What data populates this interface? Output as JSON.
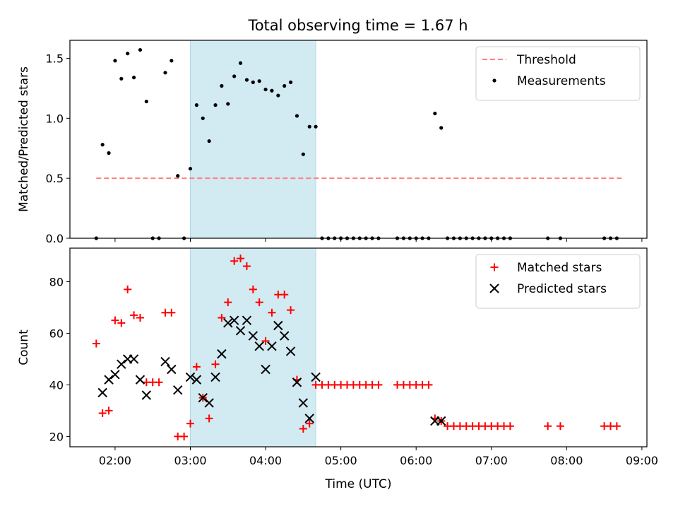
{
  "figure_title": "Total observing time = 1.67 h",
  "colors": {
    "threshold": "#ff7f7f",
    "matched": "#ff0000",
    "predicted": "#000000",
    "measurement": "#000000",
    "shade": "#add8e6"
  },
  "chart_data": [
    {
      "type": "scatter",
      "panel": "top",
      "ylabel": "Matched/Predicted stars",
      "xlabel": "",
      "xlim": [
        "01:24",
        "09:04"
      ],
      "ylim": [
        0,
        1.65
      ],
      "yticks": [
        0.0,
        0.5,
        1.0,
        1.5
      ],
      "ytick_labels": [
        "0.0",
        "0.5",
        "1.0",
        "1.5"
      ],
      "xticks": [
        "02:00",
        "03:00",
        "04:00",
        "05:00",
        "06:00",
        "07:00",
        "08:00",
        "09:00"
      ],
      "shaded_interval": [
        "03:00",
        "04:40"
      ],
      "legend_position": "top-right",
      "grid": false,
      "threshold": {
        "name": "Threshold",
        "y": 0.5,
        "x_from": "01:45",
        "x_to": "08:45"
      },
      "series": [
        {
          "name": "Measurements",
          "points": [
            [
              "01:45",
              0.0
            ],
            [
              "01:50",
              0.78
            ],
            [
              "01:55",
              0.71
            ],
            [
              "02:00",
              1.48
            ],
            [
              "02:05",
              1.33
            ],
            [
              "02:10",
              1.54
            ],
            [
              "02:15",
              1.34
            ],
            [
              "02:20",
              1.57
            ],
            [
              "02:25",
              1.14
            ],
            [
              "02:30",
              0.0
            ],
            [
              "02:35",
              0.0
            ],
            [
              "02:40",
              1.38
            ],
            [
              "02:45",
              1.48
            ],
            [
              "02:50",
              0.52
            ],
            [
              "02:55",
              0.0
            ],
            [
              "03:00",
              0.58
            ],
            [
              "03:05",
              1.11
            ],
            [
              "03:10",
              1.0
            ],
            [
              "03:15",
              0.81
            ],
            [
              "03:20",
              1.11
            ],
            [
              "03:25",
              1.27
            ],
            [
              "03:30",
              1.12
            ],
            [
              "03:35",
              1.35
            ],
            [
              "03:40",
              1.46
            ],
            [
              "03:45",
              1.32
            ],
            [
              "03:50",
              1.3
            ],
            [
              "03:55",
              1.31
            ],
            [
              "04:00",
              1.24
            ],
            [
              "04:05",
              1.23
            ],
            [
              "04:10",
              1.19
            ],
            [
              "04:15",
              1.27
            ],
            [
              "04:20",
              1.3
            ],
            [
              "04:25",
              1.02
            ],
            [
              "04:30",
              0.7
            ],
            [
              "04:35",
              0.93
            ],
            [
              "04:40",
              0.93
            ],
            [
              "04:45",
              0.0
            ],
            [
              "04:50",
              0.0
            ],
            [
              "04:55",
              0.0
            ],
            [
              "05:00",
              0.0
            ],
            [
              "05:05",
              0.0
            ],
            [
              "05:10",
              0.0
            ],
            [
              "05:15",
              0.0
            ],
            [
              "05:20",
              0.0
            ],
            [
              "05:25",
              0.0
            ],
            [
              "05:30",
              0.0
            ],
            [
              "05:45",
              0.0
            ],
            [
              "05:50",
              0.0
            ],
            [
              "05:55",
              0.0
            ],
            [
              "06:00",
              0.0
            ],
            [
              "06:05",
              0.0
            ],
            [
              "06:10",
              0.0
            ],
            [
              "06:15",
              1.04
            ],
            [
              "06:20",
              0.92
            ],
            [
              "06:25",
              0.0
            ],
            [
              "06:30",
              0.0
            ],
            [
              "06:35",
              0.0
            ],
            [
              "06:40",
              0.0
            ],
            [
              "06:45",
              0.0
            ],
            [
              "06:50",
              0.0
            ],
            [
              "06:55",
              0.0
            ],
            [
              "07:00",
              0.0
            ],
            [
              "07:05",
              0.0
            ],
            [
              "07:10",
              0.0
            ],
            [
              "07:15",
              0.0
            ],
            [
              "07:45",
              0.0
            ],
            [
              "07:55",
              0.0
            ],
            [
              "08:30",
              0.0
            ],
            [
              "08:35",
              0.0
            ],
            [
              "08:40",
              0.0
            ]
          ]
        }
      ]
    },
    {
      "type": "scatter",
      "panel": "bottom",
      "ylabel": "Count",
      "xlabel": "Time (UTC)",
      "xlim": [
        "01:24",
        "09:04"
      ],
      "ylim": [
        16,
        93
      ],
      "yticks": [
        20,
        40,
        60,
        80
      ],
      "ytick_labels": [
        "20",
        "40",
        "60",
        "80"
      ],
      "xticks": [
        "02:00",
        "03:00",
        "04:00",
        "05:00",
        "06:00",
        "07:00",
        "08:00",
        "09:00"
      ],
      "shaded_interval": [
        "03:00",
        "04:40"
      ],
      "legend_position": "top-right",
      "grid": false,
      "series": [
        {
          "name": "Matched stars",
          "marker": "plus",
          "points": [
            [
              "01:45",
              56
            ],
            [
              "01:50",
              29
            ],
            [
              "01:55",
              30
            ],
            [
              "02:00",
              65
            ],
            [
              "02:05",
              64
            ],
            [
              "02:10",
              77
            ],
            [
              "02:15",
              67
            ],
            [
              "02:20",
              66
            ],
            [
              "02:25",
              41
            ],
            [
              "02:30",
              41
            ],
            [
              "02:35",
              41
            ],
            [
              "02:40",
              68
            ],
            [
              "02:45",
              68
            ],
            [
              "02:50",
              20
            ],
            [
              "02:55",
              20
            ],
            [
              "03:00",
              25
            ],
            [
              "03:05",
              47
            ],
            [
              "03:10",
              35
            ],
            [
              "03:15",
              27
            ],
            [
              "03:20",
              48
            ],
            [
              "03:25",
              66
            ],
            [
              "03:30",
              72
            ],
            [
              "03:35",
              88
            ],
            [
              "03:40",
              89
            ],
            [
              "03:45",
              86
            ],
            [
              "03:50",
              77
            ],
            [
              "03:55",
              72
            ],
            [
              "04:00",
              57
            ],
            [
              "04:05",
              68
            ],
            [
              "04:10",
              75
            ],
            [
              "04:15",
              75
            ],
            [
              "04:20",
              69
            ],
            [
              "04:25",
              42
            ],
            [
              "04:30",
              23
            ],
            [
              "04:35",
              25
            ],
            [
              "04:40",
              40
            ],
            [
              "04:45",
              40
            ],
            [
              "04:50",
              40
            ],
            [
              "04:55",
              40
            ],
            [
              "05:00",
              40
            ],
            [
              "05:05",
              40
            ],
            [
              "05:10",
              40
            ],
            [
              "05:15",
              40
            ],
            [
              "05:20",
              40
            ],
            [
              "05:25",
              40
            ],
            [
              "05:30",
              40
            ],
            [
              "05:45",
              40
            ],
            [
              "05:50",
              40
            ],
            [
              "05:55",
              40
            ],
            [
              "06:00",
              40
            ],
            [
              "06:05",
              40
            ],
            [
              "06:10",
              40
            ],
            [
              "06:15",
              27
            ],
            [
              "06:20",
              26
            ],
            [
              "06:25",
              24
            ],
            [
              "06:30",
              24
            ],
            [
              "06:35",
              24
            ],
            [
              "06:40",
              24
            ],
            [
              "06:45",
              24
            ],
            [
              "06:50",
              24
            ],
            [
              "06:55",
              24
            ],
            [
              "07:00",
              24
            ],
            [
              "07:05",
              24
            ],
            [
              "07:10",
              24
            ],
            [
              "07:15",
              24
            ],
            [
              "07:45",
              24
            ],
            [
              "07:55",
              24
            ],
            [
              "08:30",
              24
            ],
            [
              "08:35",
              24
            ],
            [
              "08:40",
              24
            ]
          ]
        },
        {
          "name": "Predicted stars",
          "marker": "x",
          "points": [
            [
              "01:50",
              37
            ],
            [
              "01:55",
              42
            ],
            [
              "02:00",
              44
            ],
            [
              "02:05",
              48
            ],
            [
              "02:10",
              50
            ],
            [
              "02:15",
              50
            ],
            [
              "02:20",
              42
            ],
            [
              "02:25",
              36
            ],
            [
              "02:40",
              49
            ],
            [
              "02:45",
              46
            ],
            [
              "02:50",
              38
            ],
            [
              "03:00",
              43
            ],
            [
              "03:05",
              42
            ],
            [
              "03:10",
              35
            ],
            [
              "03:15",
              33
            ],
            [
              "03:20",
              43
            ],
            [
              "03:25",
              52
            ],
            [
              "03:30",
              64
            ],
            [
              "03:35",
              65
            ],
            [
              "03:40",
              61
            ],
            [
              "03:45",
              65
            ],
            [
              "03:50",
              59
            ],
            [
              "03:55",
              55
            ],
            [
              "04:00",
              46
            ],
            [
              "04:05",
              55
            ],
            [
              "04:10",
              63
            ],
            [
              "04:15",
              59
            ],
            [
              "04:20",
              53
            ],
            [
              "04:25",
              41
            ],
            [
              "04:30",
              33
            ],
            [
              "04:35",
              27
            ],
            [
              "04:40",
              43
            ],
            [
              "06:15",
              26
            ],
            [
              "06:20",
              26
            ]
          ]
        }
      ]
    }
  ]
}
